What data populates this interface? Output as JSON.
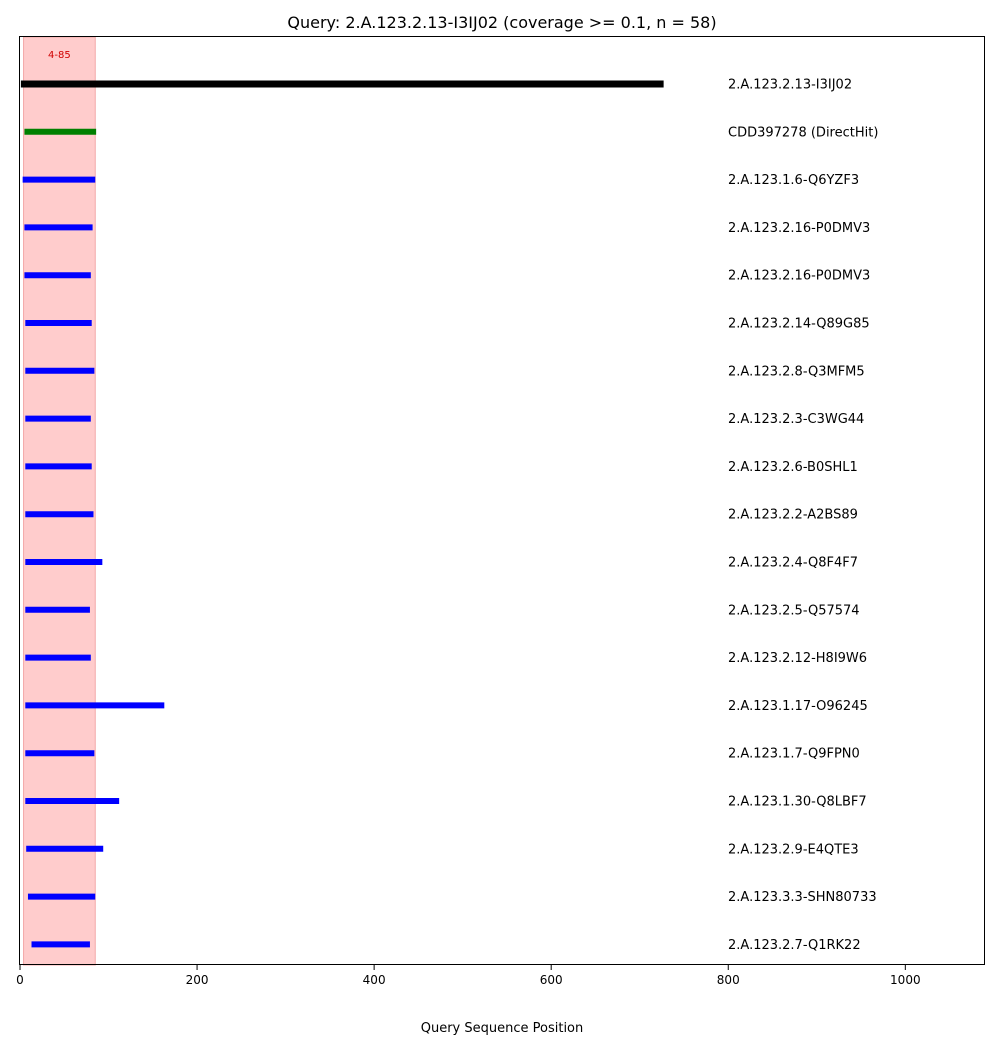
{
  "chart_data": {
    "type": "bar",
    "title": "Query: 2.A.123.2.13-I3IJ02 (coverage >= 0.1, n = 58)",
    "xlabel": "Query Sequence Position",
    "ylabel": "",
    "xlim": [
      0,
      1090
    ],
    "xticks": [
      0,
      200,
      400,
      600,
      800,
      1000
    ],
    "grid": false,
    "highlight_region": {
      "start": 4,
      "end": 85,
      "label": "4-85",
      "color": "#ffcccc"
    },
    "colors": {
      "query": "#000000",
      "direct_hit": "#008000",
      "hit": "#0000ff",
      "region_label": "#d00000"
    },
    "rows": [
      {
        "label": "2.A.123.2.13-I3IJ02",
        "start": 1,
        "end": 727,
        "kind": "query"
      },
      {
        "label": "CDD397278 (DirectHit)",
        "start": 5,
        "end": 86,
        "kind": "direct_hit"
      },
      {
        "label": "2.A.123.1.6-Q6YZF3",
        "start": 3,
        "end": 85,
        "kind": "hit"
      },
      {
        "label": "2.A.123.2.16-P0DMV3",
        "start": 5,
        "end": 82,
        "kind": "hit"
      },
      {
        "label": "2.A.123.2.16-P0DMV3",
        "start": 5,
        "end": 80,
        "kind": "hit"
      },
      {
        "label": "2.A.123.2.14-Q89G85",
        "start": 6,
        "end": 81,
        "kind": "hit"
      },
      {
        "label": "2.A.123.2.8-Q3MFM5",
        "start": 6,
        "end": 84,
        "kind": "hit"
      },
      {
        "label": "2.A.123.2.3-C3WG44",
        "start": 6,
        "end": 80,
        "kind": "hit"
      },
      {
        "label": "2.A.123.2.6-B0SHL1",
        "start": 6,
        "end": 81,
        "kind": "hit"
      },
      {
        "label": "2.A.123.2.2-A2BS89",
        "start": 6,
        "end": 83,
        "kind": "hit"
      },
      {
        "label": "2.A.123.2.4-Q8F4F7",
        "start": 6,
        "end": 93,
        "kind": "hit"
      },
      {
        "label": "2.A.123.2.5-Q57574",
        "start": 6,
        "end": 79,
        "kind": "hit"
      },
      {
        "label": "2.A.123.2.12-H8I9W6",
        "start": 6,
        "end": 80,
        "kind": "hit"
      },
      {
        "label": "2.A.123.1.17-O96245",
        "start": 6,
        "end": 163,
        "kind": "hit"
      },
      {
        "label": "2.A.123.1.7-Q9FPN0",
        "start": 6,
        "end": 84,
        "kind": "hit"
      },
      {
        "label": "2.A.123.1.30-Q8LBF7",
        "start": 6,
        "end": 112,
        "kind": "hit"
      },
      {
        "label": "2.A.123.2.9-E4QTE3",
        "start": 7,
        "end": 94,
        "kind": "hit"
      },
      {
        "label": "2.A.123.3.3-SHN80733",
        "start": 9,
        "end": 85,
        "kind": "hit"
      },
      {
        "label": "2.A.123.2.7-Q1RK22",
        "start": 13,
        "end": 79,
        "kind": "hit"
      }
    ]
  }
}
